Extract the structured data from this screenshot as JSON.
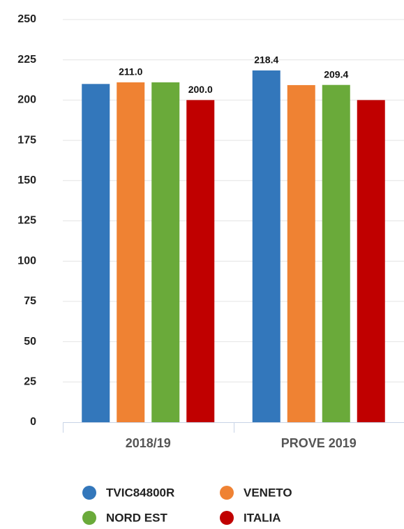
{
  "chart_data": {
    "type": "bar",
    "categories": [
      "2018/19",
      "PROVE 2019"
    ],
    "series": [
      {
        "name": "TVIC84800R",
        "color": "#3377bb",
        "values": [
          210.0,
          218.4
        ],
        "value_labels": [
          null,
          "218.4"
        ]
      },
      {
        "name": "VENETO",
        "color": "#ef8233",
        "values": [
          211.0,
          209.3
        ],
        "value_labels": [
          "211.0",
          null
        ]
      },
      {
        "name": "NORD EST",
        "color": "#6aaa3a",
        "values": [
          211.0,
          209.4
        ],
        "value_labels": [
          null,
          "209.4"
        ]
      },
      {
        "name": "ITALIA",
        "color": "#c00000",
        "values": [
          200.0,
          200.0
        ],
        "value_labels": [
          "200.0",
          null
        ]
      }
    ],
    "ylim": [
      0,
      250
    ],
    "yticks": [
      0,
      25,
      50,
      75,
      100,
      125,
      150,
      175,
      200,
      225,
      250
    ],
    "grid": true
  }
}
